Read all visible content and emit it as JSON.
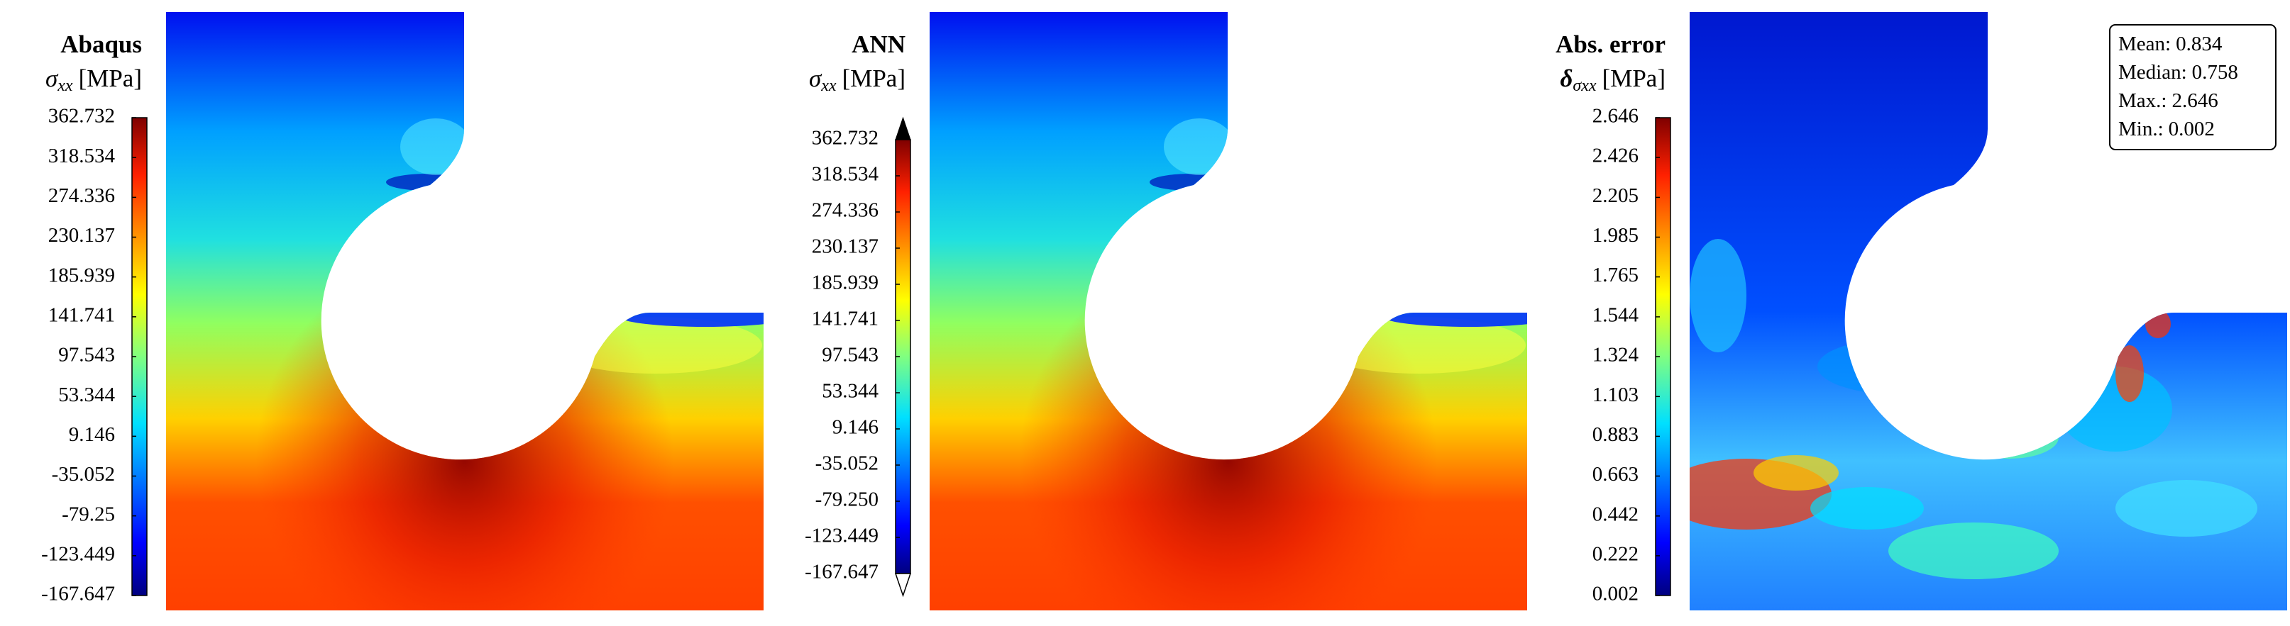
{
  "chart_data": [
    {
      "type": "contour",
      "title": "Abaqus",
      "colorbar_label": {
        "symbol": "σ",
        "subscript": "xx",
        "unit": "[MPa]"
      },
      "clim": [
        -167.647,
        362.732
      ],
      "cticks": [
        362.732,
        318.534,
        274.336,
        230.137,
        185.939,
        141.741,
        97.543,
        53.344,
        9.146,
        -35.052,
        -79.25,
        -123.449,
        -167.647
      ],
      "colormap": "jet",
      "extend": "neither"
    },
    {
      "type": "contour",
      "title": "ANN",
      "colorbar_label": {
        "symbol": "σ",
        "subscript": "xx",
        "unit": "[MPa]"
      },
      "clim": [
        -167.647,
        362.732
      ],
      "cticks": [
        362.732,
        318.534,
        274.336,
        230.137,
        185.939,
        141.741,
        97.543,
        53.344,
        9.146,
        -35.052,
        {
          "value": -79.25,
          "label": "-79.250"
        },
        -123.449,
        -167.647
      ],
      "colormap": "jet",
      "extend": "both"
    },
    {
      "type": "error",
      "title": "Abs. error",
      "colorbar_label": {
        "symbol": "δ",
        "subscript": "σxx",
        "unit": "[MPa]"
      },
      "clim": [
        0.002,
        2.646
      ],
      "cticks": [
        2.646,
        2.426,
        2.205,
        1.985,
        1.765,
        1.544,
        1.324,
        1.103,
        0.883,
        0.663,
        0.442,
        0.222,
        0.002
      ],
      "colormap": "jet",
      "extend": "neither",
      "stats": [
        {
          "label": "Mean:",
          "value": 0.834
        },
        {
          "label": "Median:",
          "value": 0.758
        },
        {
          "label": "Max.:",
          "value": 2.646
        },
        {
          "label": "Min.:",
          "value": 0.002
        }
      ]
    }
  ]
}
